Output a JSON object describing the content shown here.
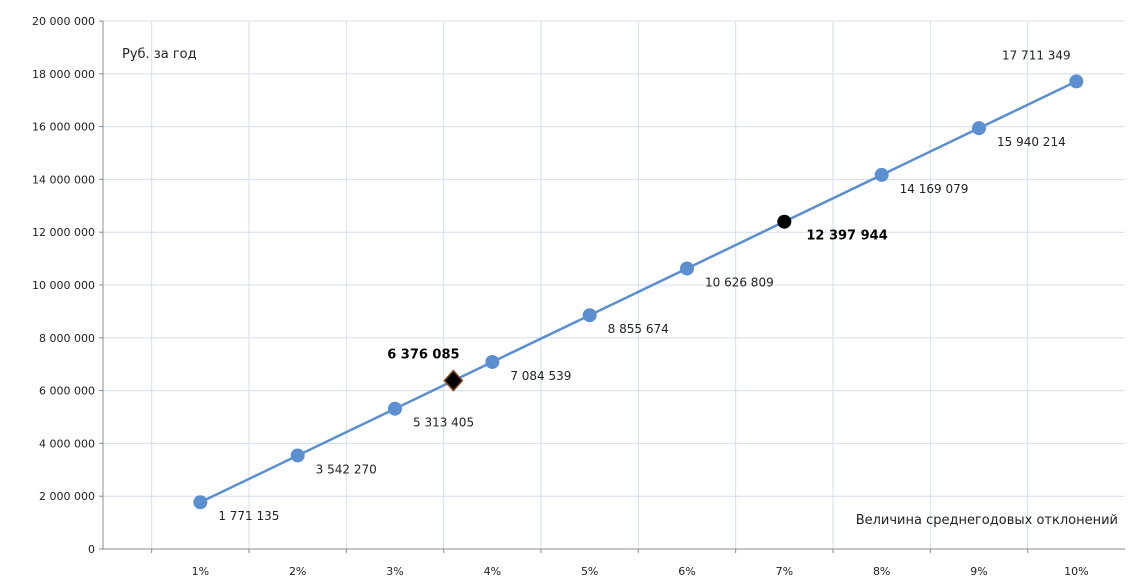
{
  "chart_data": {
    "type": "line",
    "ylabel": "Руб. за год",
    "xlabel": "Величина среднегодовых отклонений",
    "ylim": [
      0,
      20000000
    ],
    "xlim": [
      0,
      10.5
    ],
    "y_ticks": [
      {
        "value": 0,
        "label": "0"
      },
      {
        "value": 2000000,
        "label": "2 000 000"
      },
      {
        "value": 4000000,
        "label": "4 000 000"
      },
      {
        "value": 6000000,
        "label": "6 000 000"
      },
      {
        "value": 8000000,
        "label": "8 000 000"
      },
      {
        "value": 10000000,
        "label": "10 000 000"
      },
      {
        "value": 12000000,
        "label": "12 000 000"
      },
      {
        "value": 14000000,
        "label": "14 000 000"
      },
      {
        "value": 16000000,
        "label": "16 000 000"
      },
      {
        "value": 18000000,
        "label": "18 000 000"
      },
      {
        "value": 20000000,
        "label": "20 000 000"
      }
    ],
    "categories": [
      "1%",
      "2%",
      "3%",
      "4%",
      "5%",
      "6%",
      "7%",
      "8%",
      "9%",
      "10%"
    ],
    "grid": true,
    "colors": {
      "series": "#5b8fcf",
      "grid": "#d3def0",
      "axis": "#8c8c8c",
      "highlight": "#000000"
    },
    "series": [
      {
        "x": [
          1,
          2,
          3,
          4,
          5,
          6,
          8,
          9,
          10
        ],
        "values": [
          1771135,
          3542270,
          5313405,
          7084539,
          8855674,
          10626809,
          14169079,
          15940214,
          17711349
        ],
        "labels": [
          "1 771 135",
          "3 542 270",
          "5 313 405",
          "7 084 539",
          "8 855 674",
          "10 626 809",
          "14 169 079",
          "15 940 214",
          "17 711 349"
        ]
      }
    ],
    "highlights": [
      {
        "x": 3.6,
        "value": 6376085,
        "label": "6 376 085",
        "marker": "diamond"
      },
      {
        "x": 7,
        "value": 12397944,
        "label": "12 397 944",
        "marker": "circle"
      }
    ]
  }
}
